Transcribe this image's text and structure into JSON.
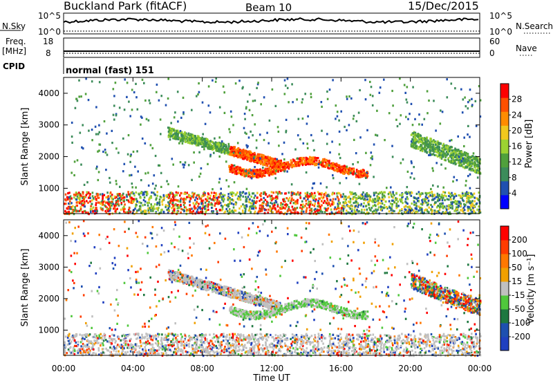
{
  "header": {
    "station": "Buckland Park (fitACF)",
    "beam": "Beam 10",
    "date": "15/Dec/2015"
  },
  "top_panels": {
    "nsky_label": "N.Sky",
    "nsky_ticks": [
      "10^5",
      "10^0"
    ],
    "nsearch_label": "N.Search",
    "nsearch_ticks": [
      "10^5",
      "10^0"
    ],
    "freq_label": "Freq.",
    "freq_unit": "[MHz]",
    "freq_ticks": [
      "18",
      "8"
    ],
    "nave_label": "Nave",
    "nave_ticks": [
      "60",
      "0"
    ],
    "cpid_label": "CPID",
    "cpid_value": "normal (fast) 151"
  },
  "colors": {
    "power": [
      "#0000ff",
      "#2050b0",
      "#3c8c5a",
      "#50a03c",
      "#9cd232",
      "#f0c81e",
      "#ff8c00",
      "#ff5000",
      "#ff0000"
    ],
    "velocity": [
      "#2040c0",
      "#1e50b0",
      "#1e7840",
      "#50c83c",
      "#c0c0c0",
      "#f0a000",
      "#ff7800",
      "#ff3c00",
      "#ff0000"
    ]
  },
  "chart_data": [
    {
      "type": "heatmap",
      "name": "power",
      "ylabel": "Slant Range [km]",
      "xlabel": "",
      "x_ticks": [
        "00:00",
        "04:00",
        "08:00",
        "12:00",
        "16:00",
        "20:00",
        "00:00"
      ],
      "x_range_hours": [
        0,
        24
      ],
      "y_ticks": [
        1000,
        2000,
        3000,
        4000
      ],
      "ylim": [
        200,
        4500
      ],
      "colorbar_label": "Power [dB]",
      "colorbar_ticks": [
        "28",
        "24",
        "20",
        "16",
        "12",
        "8",
        "4"
      ]
    },
    {
      "type": "heatmap",
      "name": "velocity",
      "ylabel": "Slant Range [km]",
      "xlabel": "Time UT",
      "x_ticks": [
        "00:00",
        "04:00",
        "08:00",
        "12:00",
        "16:00",
        "20:00",
        "00:00"
      ],
      "x_range_hours": [
        0,
        24
      ],
      "y_ticks": [
        1000,
        2000,
        3000,
        4000
      ],
      "ylim": [
        200,
        4500
      ],
      "colorbar_label": "Velocity [m s⁻¹]",
      "colorbar_ticks": [
        "200",
        "100",
        "50",
        "15",
        "-15",
        "-50",
        "-100",
        "-200"
      ]
    }
  ]
}
